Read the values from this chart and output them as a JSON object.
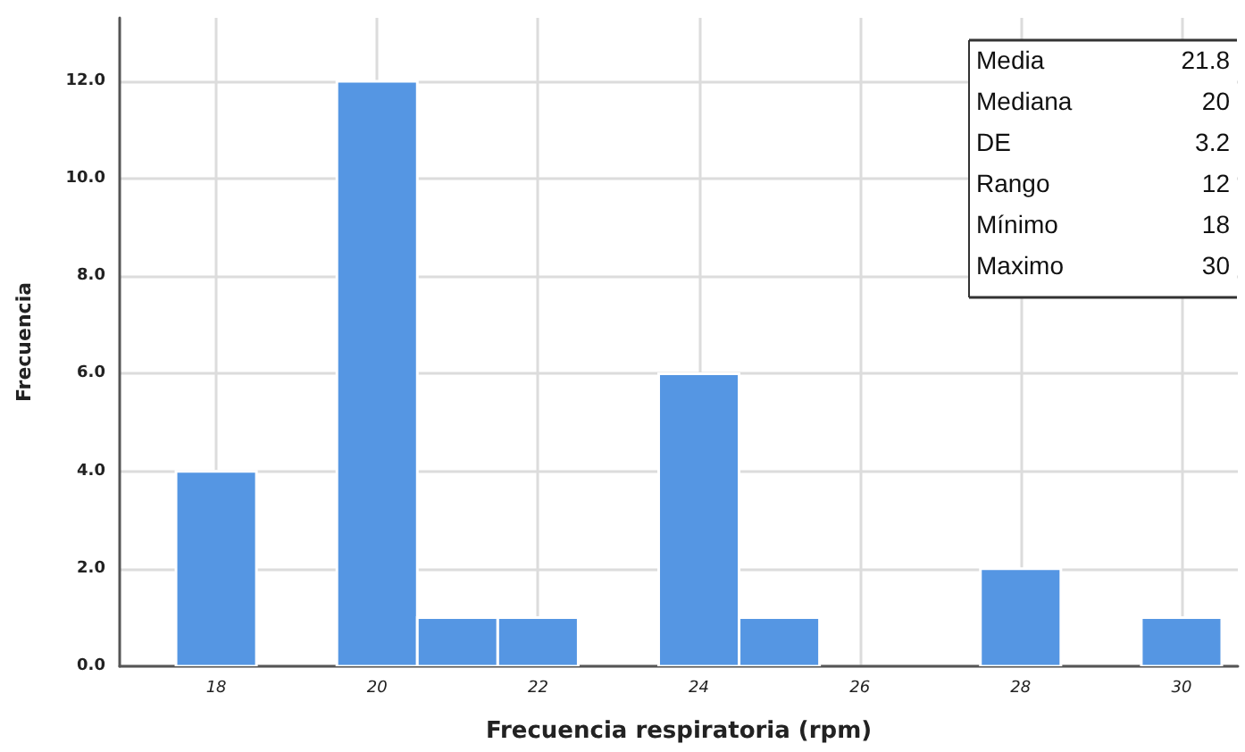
{
  "chart_data": {
    "type": "histogram",
    "xlabel": "Frecuencia respiratoria (rpm)",
    "ylabel": "Frecuencia",
    "bins": [
      17.5,
      18.5,
      19.5,
      20.5,
      21.5,
      22.5,
      23.5,
      24.5,
      25.5,
      26.5,
      27.5,
      28.5,
      29.5,
      30.5
    ],
    "values": [
      4,
      0,
      12,
      1,
      1,
      0,
      6,
      1,
      0,
      0,
      2,
      0,
      1
    ],
    "color": "#5596e3",
    "xlim": [
      16.8,
      30.7
    ],
    "xticks": [
      18,
      20,
      22,
      24,
      26,
      28,
      30
    ],
    "ylim": [
      0,
      13.3
    ],
    "yticks": [
      {
        "value": 0,
        "label": "0.0"
      },
      {
        "value": 2,
        "label": "2.0"
      },
      {
        "value": 4,
        "label": "4.0"
      },
      {
        "value": 6,
        "label": "6.0"
      },
      {
        "value": 8,
        "label": "8.0"
      },
      {
        "value": 10,
        "label": "10.0"
      },
      {
        "value": 12,
        "label": "12.0"
      }
    ],
    "grid": true,
    "annotations": [
      "Media",
      "21.8",
      "Mediana",
      "20",
      "DE",
      "3.2",
      "Rango",
      "12",
      "Mínimo",
      "18",
      "Maximo",
      "30"
    ]
  }
}
